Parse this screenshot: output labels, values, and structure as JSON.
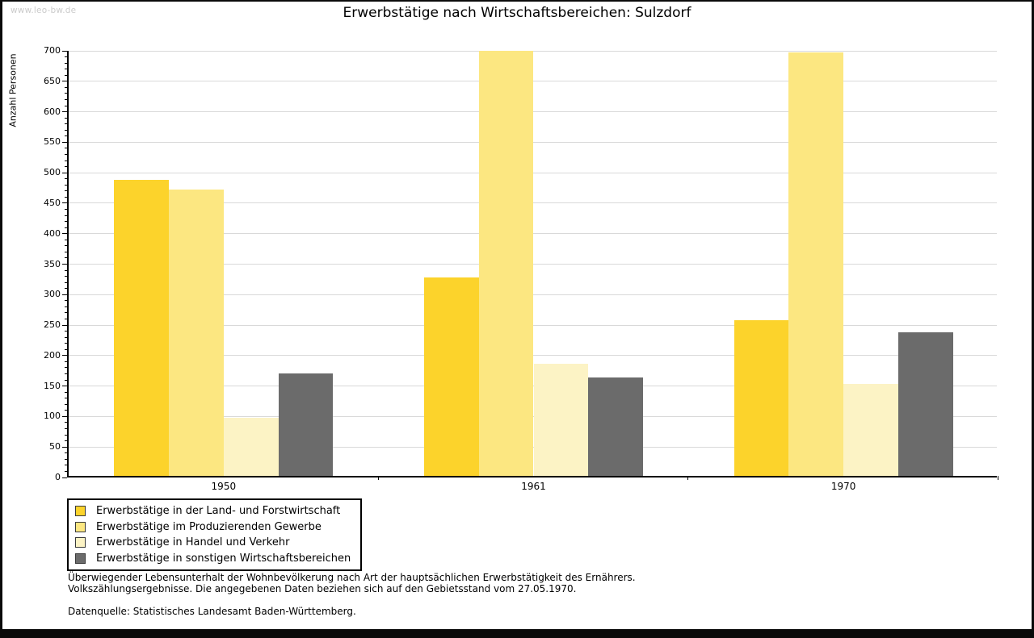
{
  "watermark": "www.leo-bw.de",
  "title": "Erwerbstätige nach Wirtschaftsbereichen: Sulzdorf",
  "chart_data": {
    "type": "bar",
    "title": "Erwerbstätige nach Wirtschaftsbereichen: Sulzdorf",
    "xlabel": "",
    "ylabel": "Anzahl Personen",
    "categories": [
      "1950",
      "1961",
      "1970"
    ],
    "series": [
      {
        "name": "Erwerbstätige in der Land- und Forstwirtschaft",
        "color": "#FCD32B",
        "values": [
          485,
          326,
          256
        ]
      },
      {
        "name": "Erwerbstätige im Produzierenden Gewerbe",
        "color": "#FCE781",
        "values": [
          470,
          697,
          695
        ]
      },
      {
        "name": "Erwerbstätige in Handel und Verkehr",
        "color": "#FCF3C5",
        "values": [
          95,
          184,
          151
        ]
      },
      {
        "name": "Erwerbstätige in sonstigen Wirtschaftsbereichen",
        "color": "#6B6B6B",
        "values": [
          168,
          161,
          236
        ]
      }
    ],
    "ylim": [
      0,
      700
    ],
    "ytick_step": 50,
    "minor_tick_step": 10,
    "grid": true,
    "legend_position": "bottom-left"
  },
  "footer": {
    "line1": "Überwiegender Lebensunterhalt der Wohnbevölkerung nach Art der hauptsächlichen Erwerbstätigkeit des Ernährers.",
    "line2": "Volkszählungsergebnisse. Die angegebenen Daten beziehen sich auf den Gebietsstand vom 27.05.1970.",
    "source": "Datenquelle: Statistisches Landesamt Baden-Württemberg."
  }
}
